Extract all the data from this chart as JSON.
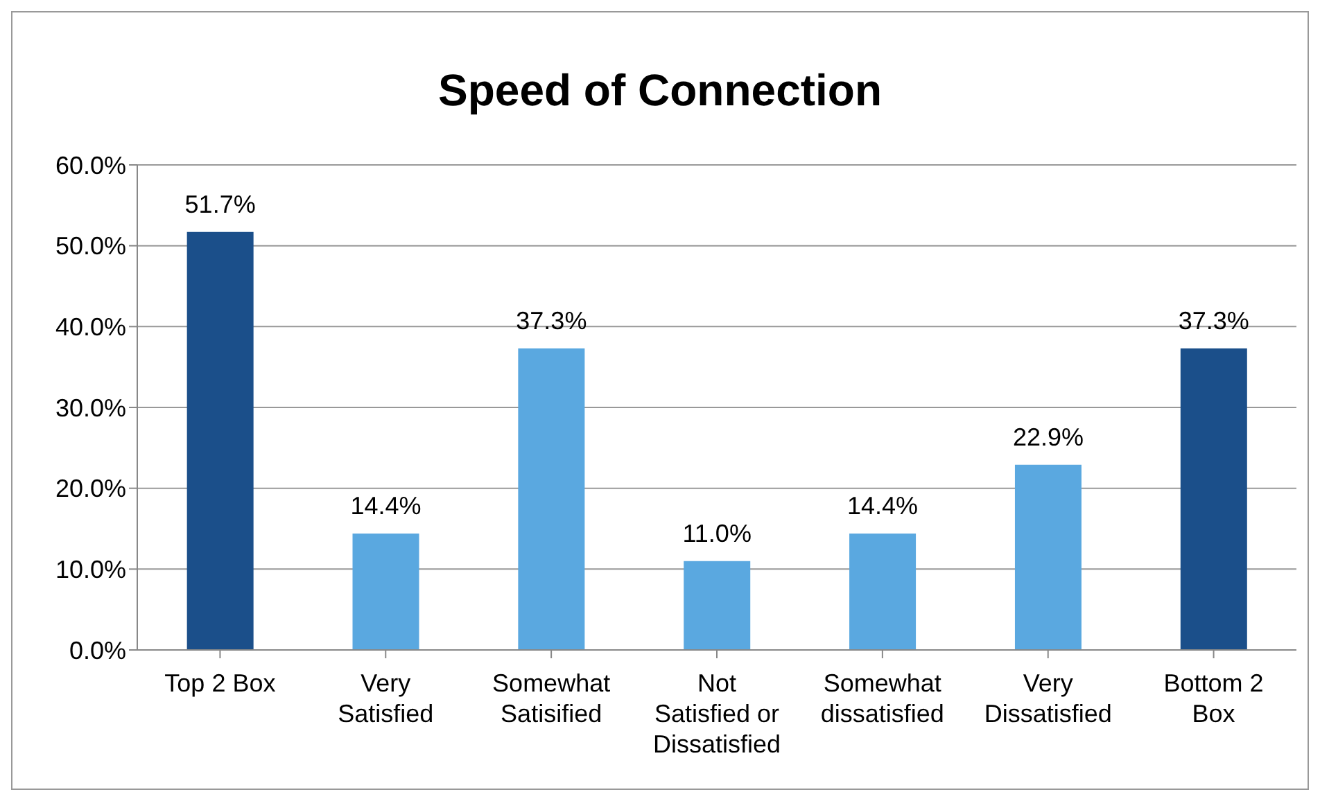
{
  "chart_data": {
    "type": "bar",
    "title": "Speed of Connection",
    "categories": [
      "Top 2 Box",
      "Very Satisfied",
      "Somewhat Satisified",
      "Not Satisfied or Dissatisfied",
      "Somewhat dissatisfied",
      "Very Dissatisfied",
      "Bottom 2 Box"
    ],
    "values": [
      51.7,
      14.4,
      37.3,
      11.0,
      14.4,
      22.9,
      37.3
    ],
    "value_labels": [
      "51.7%",
      "14.4%",
      "37.3%",
      "11.0%",
      "14.4%",
      "22.9%",
      "37.3%"
    ],
    "colors": [
      "#1b4f8a",
      "#5aa8e0",
      "#5aa8e0",
      "#5aa8e0",
      "#5aa8e0",
      "#5aa8e0",
      "#1b4f8a"
    ],
    "ylim": [
      0,
      60
    ],
    "yticks": [
      {
        "value": 0,
        "label": "0.0%"
      },
      {
        "value": 10,
        "label": "10.0%"
      },
      {
        "value": 20,
        "label": "20.0%"
      },
      {
        "value": 30,
        "label": "30.0%"
      },
      {
        "value": 40,
        "label": "40.0%"
      },
      {
        "value": 50,
        "label": "50.0%"
      },
      {
        "value": 60,
        "label": "60.0%"
      }
    ],
    "grid": "y"
  }
}
